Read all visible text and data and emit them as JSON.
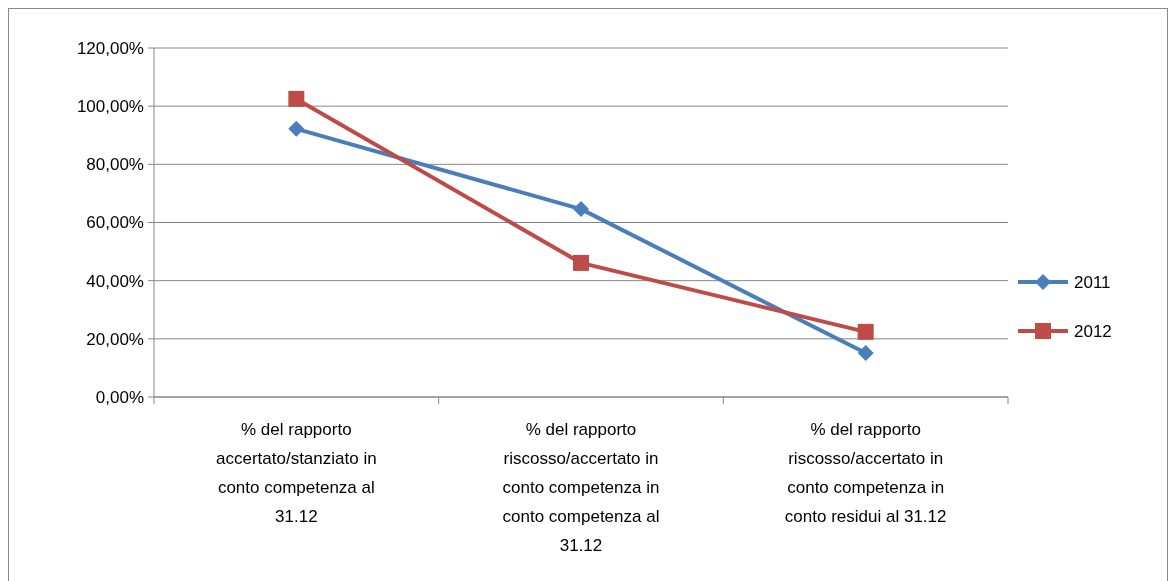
{
  "chart_data": {
    "type": "line",
    "categories": [
      "% del rapporto accertato/stanziato in conto competenza al 31.12",
      "% del rapporto riscosso/accertato in conto competenza in conto competenza al 31.12",
      "% del rapporto riscosso/accertato in conto competenza in conto residui al 31.12"
    ],
    "series": [
      {
        "name": "2011",
        "color": "#4a7ebb",
        "marker": "diamond",
        "values": [
          92.2,
          64.6,
          15.1
        ]
      },
      {
        "name": "2012",
        "color": "#be4b48",
        "marker": "square",
        "values": [
          102.5,
          46.1,
          22.4
        ]
      }
    ],
    "ylim": [
      0,
      120
    ],
    "yticks": [
      {
        "value": 0,
        "label": "0,00%"
      },
      {
        "value": 20,
        "label": "20,00%"
      },
      {
        "value": 40,
        "label": "40,00%"
      },
      {
        "value": 60,
        "label": "60,00%"
      },
      {
        "value": 80,
        "label": "80,00%"
      },
      {
        "value": 100,
        "label": "100,00%"
      },
      {
        "value": 120,
        "label": "120,00%"
      }
    ],
    "grid": "y",
    "legend": "right"
  }
}
